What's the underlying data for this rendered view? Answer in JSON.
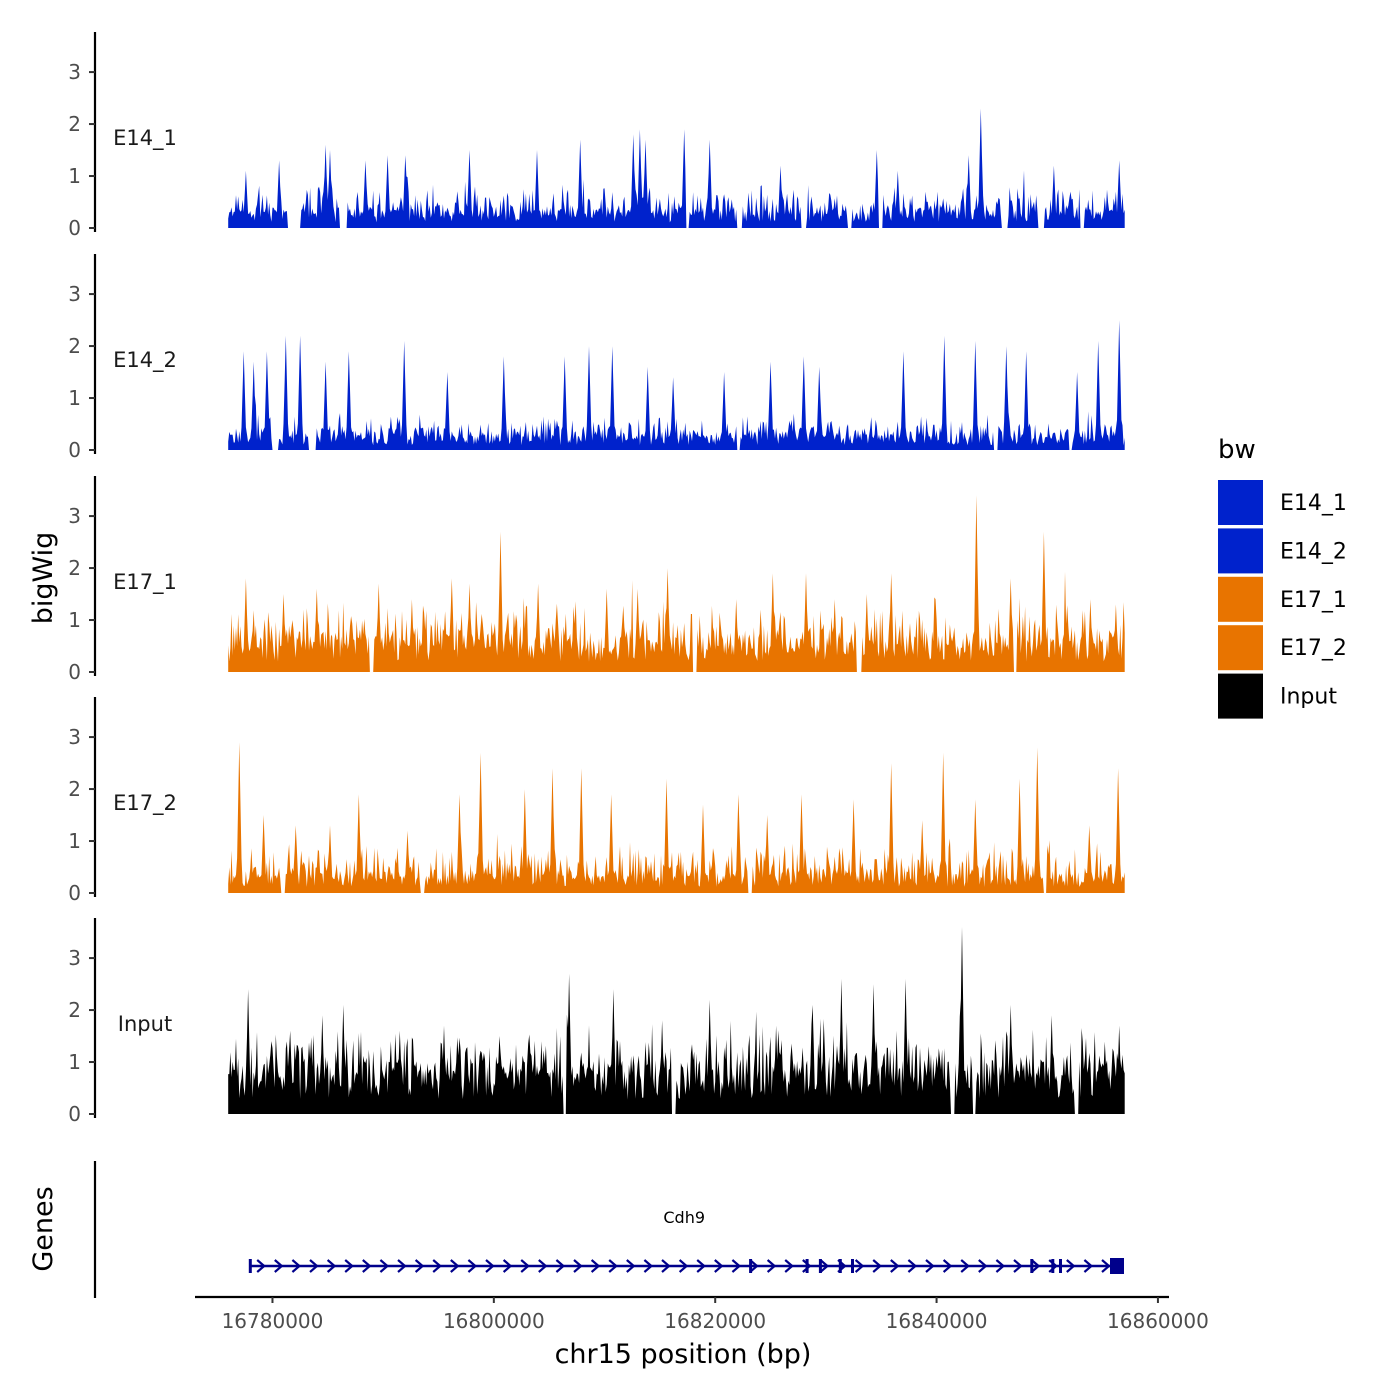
{
  "chart_data": {
    "type": "area",
    "ylabel": "bigWig",
    "xlabel": "chr15 position (bp)",
    "region": {
      "chrom": "chr15",
      "start": 16776000,
      "end": 16857000
    },
    "xlim": [
      16773000,
      16861000
    ],
    "ylim": [
      0,
      3.8
    ],
    "y_ticks": [
      0,
      1,
      2,
      3
    ],
    "x_ticks": [
      16780000,
      16800000,
      16820000,
      16840000,
      16860000
    ],
    "x_tick_labels": [
      "16780000",
      "16800000",
      "16820000",
      "16840000",
      "16860000"
    ],
    "bin_size": 100,
    "series": [
      {
        "name": "E14_1",
        "color": "#0022CC",
        "base": 0.3,
        "noise": 0.22,
        "seed": 11,
        "peaks": [
          [
            16777600,
            1.1
          ],
          [
            16780600,
            1.3
          ],
          [
            16784800,
            1.6
          ],
          [
            16785200,
            1.5
          ],
          [
            16788400,
            1.3
          ],
          [
            16790400,
            1.4
          ],
          [
            16792000,
            1.4
          ],
          [
            16797800,
            1.5
          ],
          [
            16803900,
            1.5
          ],
          [
            16807800,
            1.7
          ],
          [
            16812600,
            1.8
          ],
          [
            16813200,
            1.9
          ],
          [
            16813700,
            1.7
          ],
          [
            16817200,
            1.9
          ],
          [
            16819500,
            1.7
          ],
          [
            16825900,
            1.2
          ],
          [
            16834600,
            1.5
          ],
          [
            16836500,
            1.1
          ],
          [
            16842900,
            1.4
          ],
          [
            16844000,
            2.3
          ],
          [
            16850600,
            1.2
          ],
          [
            16856500,
            1.3
          ]
        ],
        "gaps": [
          [
            16781400,
            16782500
          ],
          [
            16786100,
            16786700
          ],
          [
            16817400,
            16817600
          ],
          [
            16822000,
            16822400
          ],
          [
            16827800,
            16828200
          ],
          [
            16832000,
            16832300
          ],
          [
            16834800,
            16835100
          ],
          [
            16845900,
            16846400
          ],
          [
            16849200,
            16849700
          ],
          [
            16853000,
            16853300
          ]
        ]
      },
      {
        "name": "E14_2",
        "color": "#0022CC",
        "base": 0.25,
        "noise": 0.18,
        "seed": 23,
        "peaks": [
          [
            16777400,
            1.9
          ],
          [
            16778300,
            1.7
          ],
          [
            16779500,
            1.9
          ],
          [
            16781200,
            2.2
          ],
          [
            16782500,
            2.2
          ],
          [
            16784800,
            1.7
          ],
          [
            16786900,
            1.9
          ],
          [
            16791900,
            2.1
          ],
          [
            16795800,
            1.5
          ],
          [
            16800900,
            1.8
          ],
          [
            16806400,
            1.8
          ],
          [
            16808600,
            2.0
          ],
          [
            16810700,
            2.0
          ],
          [
            16813900,
            1.6
          ],
          [
            16816200,
            1.4
          ],
          [
            16820800,
            1.5
          ],
          [
            16825000,
            1.7
          ],
          [
            16828000,
            1.8
          ],
          [
            16829400,
            1.6
          ],
          [
            16837000,
            1.9
          ],
          [
            16840700,
            2.2
          ],
          [
            16843500,
            2.1
          ],
          [
            16845400,
            2.0
          ],
          [
            16846300,
            2.0
          ],
          [
            16848100,
            1.9
          ],
          [
            16852700,
            1.5
          ],
          [
            16854600,
            2.1
          ],
          [
            16856500,
            2.5
          ]
        ],
        "gaps": [
          [
            16780000,
            16780500
          ],
          [
            16783300,
            16783900
          ],
          [
            16822000,
            16822200
          ],
          [
            16845200,
            16845500
          ],
          [
            16852000,
            16852200
          ]
        ]
      },
      {
        "name": "E17_1",
        "color": "#E87400",
        "base": 0.55,
        "noise": 0.35,
        "seed": 37,
        "peaks": [
          [
            16777600,
            1.8
          ],
          [
            16781000,
            1.5
          ],
          [
            16784000,
            1.6
          ],
          [
            16789600,
            1.7
          ],
          [
            16792600,
            1.4
          ],
          [
            16796200,
            1.8
          ],
          [
            16797800,
            1.7
          ],
          [
            16800600,
            2.7
          ],
          [
            16804000,
            1.7
          ],
          [
            16810200,
            1.6
          ],
          [
            16813000,
            1.6
          ],
          [
            16815700,
            2.0
          ],
          [
            16821900,
            1.4
          ],
          [
            16825200,
            1.9
          ],
          [
            16828200,
            1.9
          ],
          [
            16830800,
            1.4
          ],
          [
            16833700,
            1.5
          ],
          [
            16835900,
            1.9
          ],
          [
            16839900,
            1.4
          ],
          [
            16843600,
            3.4
          ],
          [
            16846700,
            1.8
          ],
          [
            16849700,
            2.7
          ],
          [
            16853900,
            1.4
          ],
          [
            16856200,
            1.3
          ]
        ],
        "gaps": [
          [
            16788800,
            16789100
          ],
          [
            16818000,
            16818300
          ],
          [
            16832800,
            16833200
          ],
          [
            16847000,
            16847200
          ]
        ]
      },
      {
        "name": "E17_2",
        "color": "#E87400",
        "base": 0.3,
        "noise": 0.28,
        "seed": 53,
        "peaks": [
          [
            16777000,
            2.9
          ],
          [
            16779200,
            1.5
          ],
          [
            16782100,
            1.3
          ],
          [
            16785200,
            1.3
          ],
          [
            16787800,
            1.9
          ],
          [
            16792200,
            1.2
          ],
          [
            16796900,
            1.9
          ],
          [
            16798800,
            2.7
          ],
          [
            16802800,
            2.0
          ],
          [
            16805300,
            2.4
          ],
          [
            16807900,
            2.4
          ],
          [
            16810600,
            1.9
          ],
          [
            16815600,
            2.2
          ],
          [
            16818900,
            1.7
          ],
          [
            16822100,
            1.9
          ],
          [
            16824700,
            1.5
          ],
          [
            16827800,
            1.9
          ],
          [
            16832500,
            1.8
          ],
          [
            16835900,
            2.5
          ],
          [
            16838700,
            1.4
          ],
          [
            16840600,
            2.7
          ],
          [
            16843500,
            1.8
          ],
          [
            16847500,
            2.2
          ],
          [
            16849100,
            2.8
          ],
          [
            16853800,
            1.3
          ],
          [
            16856400,
            2.4
          ]
        ],
        "gaps": [
          [
            16780800,
            16781100
          ],
          [
            16793400,
            16793700
          ],
          [
            16823000,
            16823300
          ],
          [
            16849700,
            16849900
          ]
        ]
      },
      {
        "name": "Input",
        "color": "#000000",
        "base": 0.75,
        "noise": 0.4,
        "seed": 71,
        "peaks": [
          [
            16777800,
            2.4
          ],
          [
            16781600,
            1.6
          ],
          [
            16784500,
            1.9
          ],
          [
            16786400,
            2.1
          ],
          [
            16791500,
            1.6
          ],
          [
            16795500,
            1.7
          ],
          [
            16800500,
            1.5
          ],
          [
            16804300,
            1.4
          ],
          [
            16806800,
            2.7
          ],
          [
            16810800,
            2.4
          ],
          [
            16815200,
            1.8
          ],
          [
            16819500,
            2.2
          ],
          [
            16825500,
            1.7
          ],
          [
            16828800,
            2.1
          ],
          [
            16831400,
            2.6
          ],
          [
            16834300,
            2.5
          ],
          [
            16837200,
            2.6
          ],
          [
            16842300,
            3.6
          ],
          [
            16846700,
            2.1
          ],
          [
            16850400,
            1.9
          ],
          [
            16853200,
            1.4
          ],
          [
            16856500,
            1.7
          ]
        ],
        "gaps": [
          [
            16806300,
            16806500
          ],
          [
            16816100,
            16816400
          ],
          [
            16841300,
            16841600
          ],
          [
            16843300,
            16843500
          ],
          [
            16852500,
            16852800
          ]
        ]
      }
    ],
    "legend": {
      "title": "bw",
      "position": "right",
      "entries": [
        "E14_1",
        "E14_2",
        "E17_1",
        "E17_2",
        "Input"
      ]
    },
    "genes_track": {
      "label": "Genes",
      "genes": [
        {
          "name": "Cdh9",
          "start": 16777900,
          "end": 16856500,
          "strand": "+",
          "color": "#00008B",
          "exons": [
            16778000,
            16823200,
            16828300,
            16829500,
            16831300,
            16832400,
            16848600,
            16850500,
            16851200,
            16856300
          ]
        }
      ]
    }
  }
}
